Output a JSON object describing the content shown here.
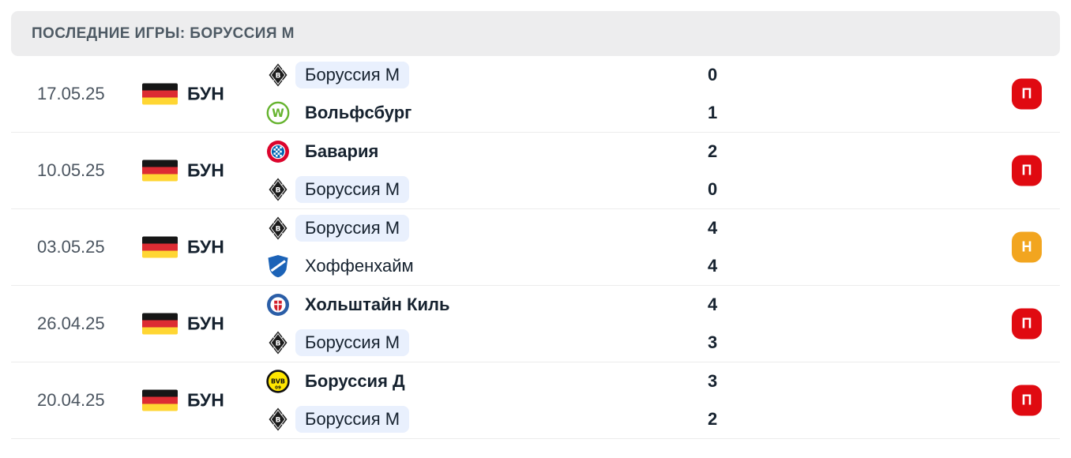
{
  "header": {
    "title": "ПОСЛЕДНИЕ ИГРЫ: БОРУССИЯ М"
  },
  "colors": {
    "header_bg": "#ededee",
    "header_text": "#4e5a64",
    "date_text": "#4b5560",
    "team_text": "#16222f",
    "pill_bg": "#e9f0fd",
    "badge_loss": "#e00a11",
    "badge_draw": "#f2a51f",
    "separator": "#ececec",
    "flag_black": "#161616",
    "flag_red": "#dd2c33",
    "flag_gold": "#ffd633"
  },
  "matches": [
    {
      "date": "17.05.25",
      "league": "БУН",
      "flag": "germany-flag",
      "teams": [
        {
          "name": "Боруссия М",
          "logo": "borussia-moenchengladbach",
          "score": "0",
          "highlighted": true,
          "bold": false
        },
        {
          "name": "Вольфсбург",
          "logo": "wolfsburg",
          "score": "1",
          "highlighted": false,
          "bold": true
        }
      ],
      "result": {
        "label": "П",
        "type": "loss"
      }
    },
    {
      "date": "10.05.25",
      "league": "БУН",
      "flag": "germany-flag",
      "teams": [
        {
          "name": "Бавария",
          "logo": "bayern",
          "score": "2",
          "highlighted": false,
          "bold": true
        },
        {
          "name": "Боруссия М",
          "logo": "borussia-moenchengladbach",
          "score": "0",
          "highlighted": true,
          "bold": false
        }
      ],
      "result": {
        "label": "П",
        "type": "loss"
      }
    },
    {
      "date": "03.05.25",
      "league": "БУН",
      "flag": "germany-flag",
      "teams": [
        {
          "name": "Боруссия М",
          "logo": "borussia-moenchengladbach",
          "score": "4",
          "highlighted": true,
          "bold": false
        },
        {
          "name": "Хоффенхайм",
          "logo": "hoffenheim",
          "score": "4",
          "highlighted": false,
          "bold": false
        }
      ],
      "result": {
        "label": "Н",
        "type": "draw"
      }
    },
    {
      "date": "26.04.25",
      "league": "БУН",
      "flag": "germany-flag",
      "teams": [
        {
          "name": "Хольштайн Киль",
          "logo": "holstein-kiel",
          "score": "4",
          "highlighted": false,
          "bold": true
        },
        {
          "name": "Боруссия М",
          "logo": "borussia-moenchengladbach",
          "score": "3",
          "highlighted": true,
          "bold": false
        }
      ],
      "result": {
        "label": "П",
        "type": "loss"
      }
    },
    {
      "date": "20.04.25",
      "league": "БУН",
      "flag": "germany-flag",
      "teams": [
        {
          "name": "Боруссия Д",
          "logo": "borussia-dortmund",
          "score": "3",
          "highlighted": false,
          "bold": true
        },
        {
          "name": "Боруссия М",
          "logo": "borussia-moenchengladbach",
          "score": "2",
          "highlighted": true,
          "bold": false
        }
      ],
      "result": {
        "label": "П",
        "type": "loss"
      }
    }
  ]
}
